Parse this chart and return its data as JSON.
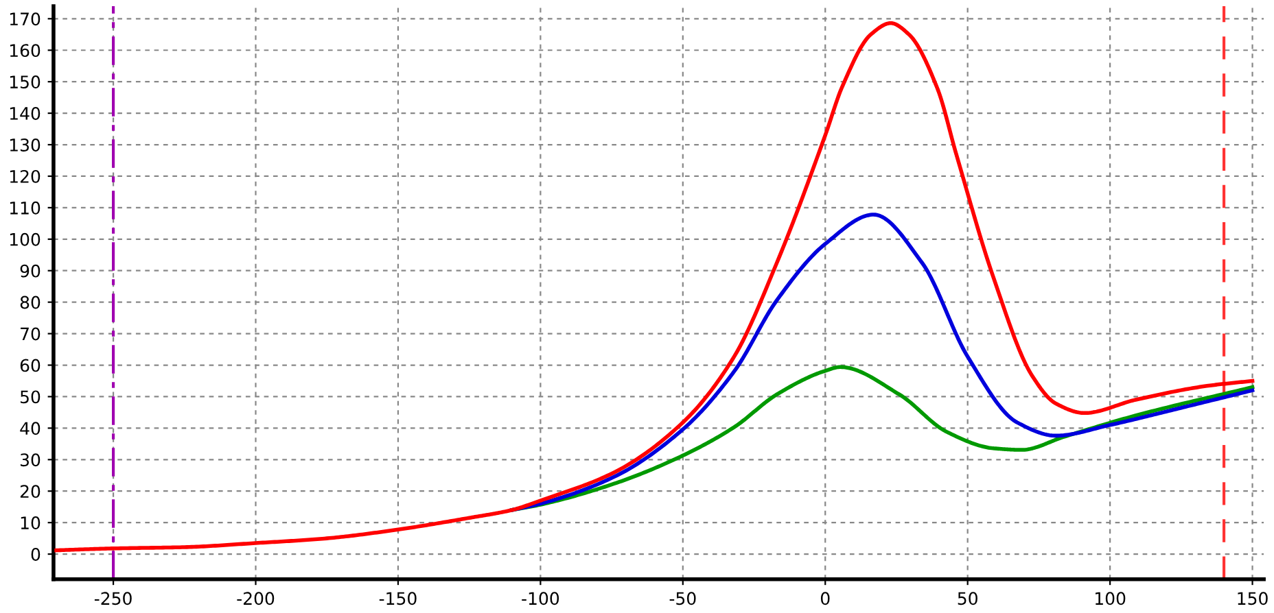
{
  "chart_data": {
    "type": "line",
    "xlim": [
      -271,
      154
    ],
    "ylim": [
      -8,
      174
    ],
    "xticks": [
      -250,
      -200,
      -150,
      -100,
      -50,
      0,
      50,
      100,
      150
    ],
    "yticks": [
      0,
      10,
      20,
      30,
      40,
      50,
      60,
      70,
      80,
      90,
      100,
      110,
      120,
      130,
      140,
      150,
      160,
      170
    ],
    "grid": true,
    "line_style": "solid",
    "marker": "none",
    "series": [
      {
        "color": "#009900",
        "x": [
          -110,
          -100,
          -74,
          -50,
          -32,
          -17,
          0,
          5.3,
          26,
          42.7,
          59,
          69,
          84,
          109,
          150
        ],
        "values": [
          14,
          15.7,
          22.4,
          31.3,
          40.3,
          50.7,
          58.2,
          59.4,
          50.7,
          38.8,
          33.6,
          33.1,
          37.3,
          44,
          53
        ]
      },
      {
        "color": "#0000dd",
        "x": [
          -110,
          -100,
          -74,
          -50,
          -32,
          -17,
          0,
          17,
          34,
          50,
          67.4,
          81,
          100,
          125.7,
          150
        ],
        "values": [
          14,
          16,
          24.6,
          39.6,
          58,
          80.6,
          98.5,
          107.8,
          92.5,
          62.7,
          41.8,
          37.6,
          41,
          46.6,
          52
        ]
      },
      {
        "color": "#ff0000",
        "x": [
          -270,
          -250,
          -225,
          -200,
          -175,
          -150,
          -125,
          -110,
          -100,
          -74,
          -50,
          -32,
          -17,
          0,
          6,
          16,
          23,
          29.4,
          39.4,
          46,
          59,
          72.6,
          81,
          91,
          109,
          134,
          150
        ],
        "values": [
          1.2,
          1.8,
          2.2,
          3.5,
          5,
          7.8,
          11.5,
          14,
          17,
          26,
          41.8,
          62.7,
          92.5,
          133,
          148.5,
          165,
          168.6,
          165,
          147.8,
          127,
          88,
          56.7,
          47.8,
          44.8,
          49,
          53.4,
          55
        ]
      }
    ],
    "ref_lines": [
      {
        "axis": "x",
        "value": -250,
        "color": "#a000b0",
        "line_style": "dashdot"
      },
      {
        "axis": "x",
        "value": 140,
        "color": "#ff3333",
        "line_style": "dashed"
      }
    ]
  }
}
